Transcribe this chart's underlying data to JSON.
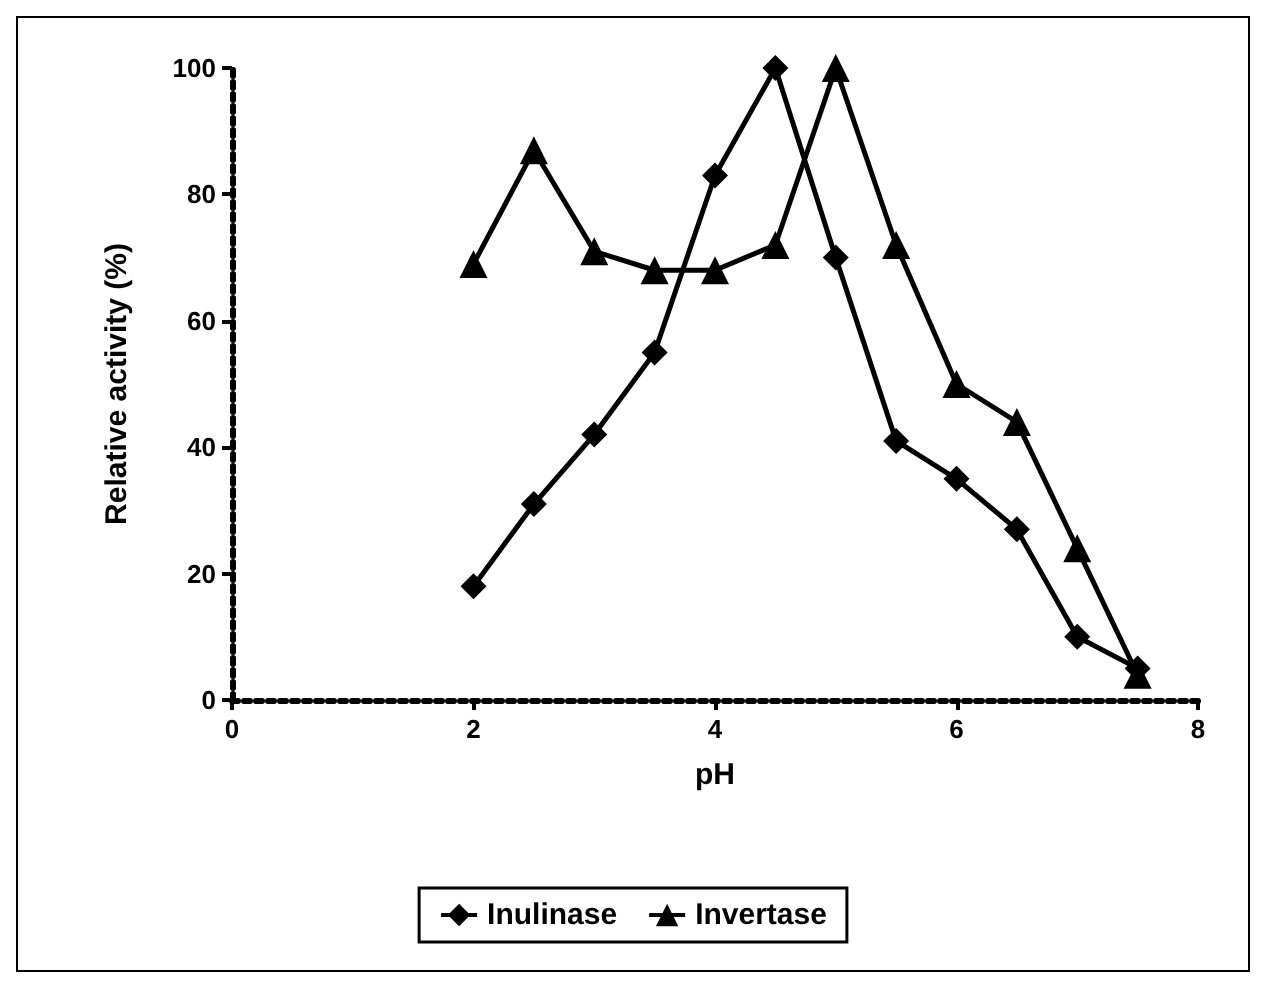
{
  "chart_data": {
    "type": "line",
    "xlabel": "pH",
    "ylabel": "Relative activity (%)",
    "x": [
      2,
      2.5,
      3,
      3.5,
      4,
      4.5,
      5,
      5.5,
      6,
      6.5,
      7,
      7.5
    ],
    "xlim": [
      0,
      8
    ],
    "xticks": [
      0,
      2,
      4,
      6,
      8
    ],
    "ylim": [
      0,
      100
    ],
    "yticks": [
      0,
      20,
      40,
      60,
      80,
      100
    ],
    "grid": false,
    "legend": "bottom",
    "line_style": "solid",
    "series": [
      {
        "name": "Inulinase",
        "color": "#000000",
        "marker": "diamond",
        "values": [
          18,
          31,
          42,
          55,
          83,
          100,
          70,
          41,
          35,
          27,
          10,
          5
        ]
      },
      {
        "name": "Invertase",
        "color": "#000000",
        "marker": "triangle",
        "values": [
          69,
          87,
          71,
          68,
          68,
          72,
          100,
          72,
          50,
          44,
          24,
          4
        ]
      }
    ]
  }
}
